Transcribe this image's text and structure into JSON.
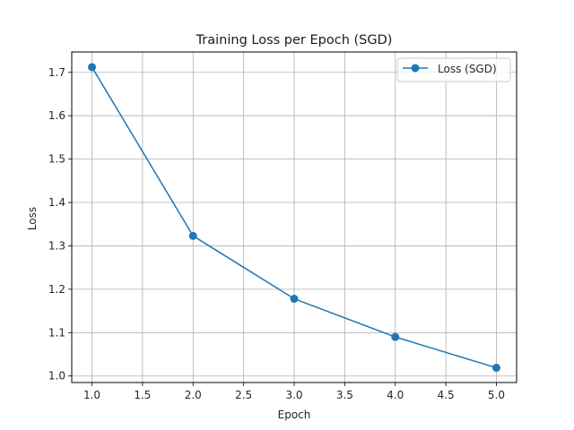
{
  "chart_data": {
    "type": "line",
    "title": "Training Loss per Epoch (SGD)",
    "xlabel": "Epoch",
    "ylabel": "Loss",
    "x": [
      1.0,
      2.0,
      3.0,
      4.0,
      5.0
    ],
    "series": [
      {
        "name": "Loss (SGD)",
        "values": [
          1.712,
          1.323,
          1.178,
          1.09,
          1.019
        ],
        "color": "#1f77b4",
        "marker": "circle"
      }
    ],
    "xlim": [
      0.8,
      5.2
    ],
    "ylim": [
      0.985,
      1.747
    ],
    "x_ticks": [
      "1.0",
      "1.5",
      "2.0",
      "2.5",
      "3.0",
      "3.5",
      "4.0",
      "4.5",
      "5.0"
    ],
    "y_ticks": [
      "1.0",
      "1.1",
      "1.2",
      "1.3",
      "1.4",
      "1.5",
      "1.6",
      "1.7"
    ],
    "grid": true,
    "legend_position": "top-right"
  }
}
